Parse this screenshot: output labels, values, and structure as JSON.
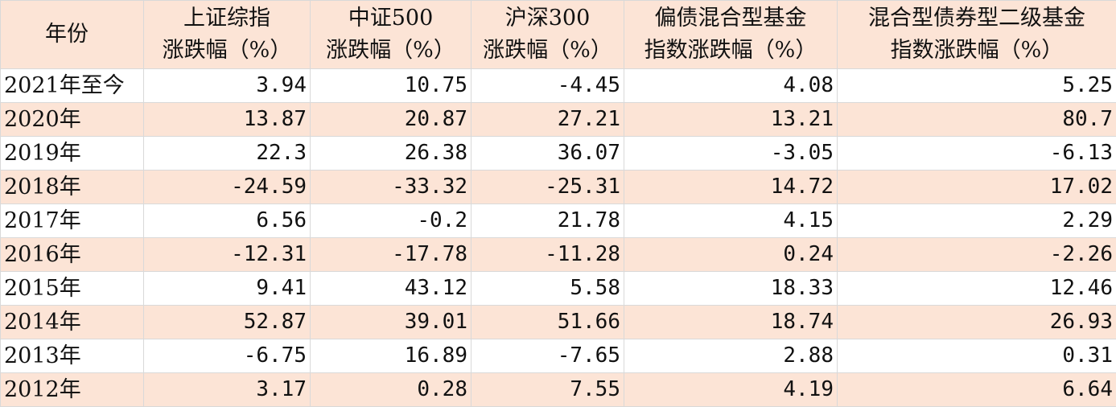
{
  "table": {
    "header": [
      [
        "年份"
      ],
      [
        "上证综指",
        "涨跌幅（%）"
      ],
      [
        "中证500",
        "涨跌幅（%）"
      ],
      [
        "沪深300",
        "涨跌幅（%）"
      ],
      [
        "偏债混合型基金",
        "指数涨跌幅（%）"
      ],
      [
        "混合型债券型二级基金",
        "指数涨跌幅（%）"
      ]
    ],
    "rows": [
      [
        "2021年至今",
        3.94,
        10.75,
        -4.45,
        4.08,
        5.25
      ],
      [
        "2020年",
        13.87,
        20.87,
        27.21,
        13.21,
        80.7
      ],
      [
        "2019年",
        22.3,
        26.38,
        36.07,
        -3.05,
        -6.13
      ],
      [
        "2018年",
        -24.59,
        -33.32,
        -25.31,
        14.72,
        17.02
      ],
      [
        "2017年",
        6.56,
        -0.2,
        21.78,
        4.15,
        2.29
      ],
      [
        "2016年",
        -12.31,
        -17.78,
        -11.28,
        0.24,
        -2.26
      ],
      [
        "2015年",
        9.41,
        43.12,
        5.58,
        18.33,
        12.46
      ],
      [
        "2014年",
        52.87,
        39.01,
        51.66,
        18.74,
        26.93
      ],
      [
        "2013年",
        -6.75,
        16.89,
        -7.65,
        2.88,
        0.31
      ],
      [
        "2012年",
        3.17,
        0.28,
        7.55,
        4.19,
        6.64
      ]
    ]
  }
}
